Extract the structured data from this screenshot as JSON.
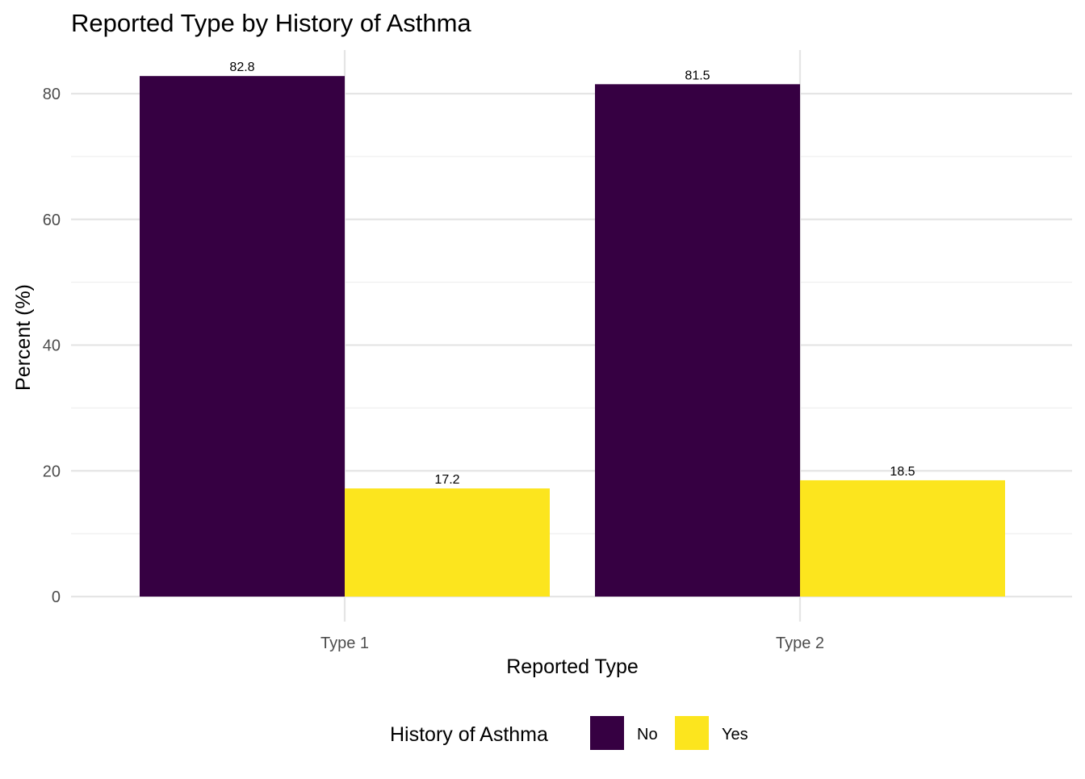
{
  "chart_data": {
    "type": "bar",
    "title": "Reported Type by History of Asthma",
    "xlabel": "Reported Type",
    "ylabel": "Percent (%)",
    "categories": [
      "Type 1",
      "Type 2"
    ],
    "series": [
      {
        "name": "No",
        "values": [
          82.8,
          81.5
        ],
        "labels": [
          "82.8",
          "81.5"
        ],
        "color": "#360042"
      },
      {
        "name": "Yes",
        "values": [
          17.2,
          18.5
        ],
        "labels": [
          "17.2",
          "18.5"
        ],
        "color": "#fce51e"
      }
    ],
    "ylim": [
      0,
      86.2
    ],
    "yticks": [
      0,
      20,
      40,
      60,
      80
    ],
    "ytick_labels": [
      "0",
      "20",
      "40",
      "60",
      "80"
    ],
    "grid": true,
    "legend": {
      "title": "History of Asthma",
      "placement": "bottom"
    },
    "colors": {
      "grid_major": "#e5e5e5",
      "grid_minor": "#efefef",
      "axis_text": "#4d4d4d",
      "text": "#000000"
    }
  }
}
